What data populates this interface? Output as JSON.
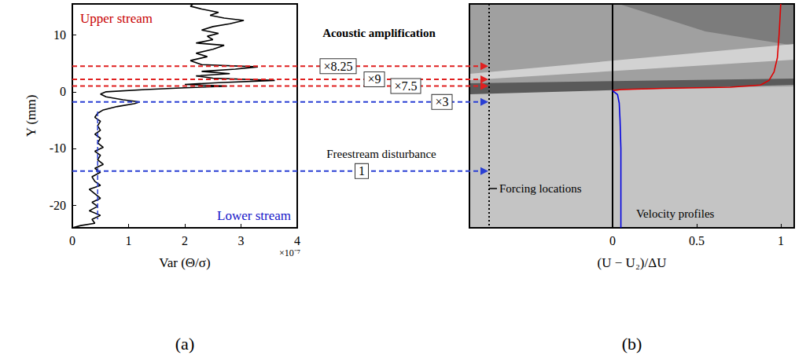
{
  "chart_data": [
    {
      "type": "line",
      "title": "(a)",
      "x_label": "Var (Θ/σ)",
      "x_scale_label": "×10⁻⁷",
      "y_label": "Y (mm)",
      "xlim": [
        0,
        4
      ],
      "xticks": [
        0,
        1,
        2,
        3,
        4
      ],
      "ylim": [
        -24,
        15.5
      ],
      "yticks": [
        -20,
        -10,
        0,
        10
      ],
      "grid": false,
      "series": [
        {
          "color": "#000000",
          "line_style": "solid",
          "marker": "none",
          "x": [
            0.0,
            0.15,
            0.4,
            0.35,
            0.5,
            0.3,
            0.45,
            0.35,
            0.5,
            0.4,
            0.3,
            0.5,
            0.4,
            0.35,
            0.5,
            0.4,
            0.55,
            0.45,
            0.5,
            0.4,
            0.55,
            0.45,
            0.5,
            0.4,
            0.5,
            0.45,
            0.5,
            0.4,
            0.45,
            0.55,
            0.8,
            1.1,
            1.2,
            0.9,
            0.6,
            0.5,
            0.6,
            1.3,
            2.0,
            2.75,
            2.0,
            2.6,
            3.6,
            2.5,
            2.2,
            2.8,
            2.3,
            2.9,
            3.3,
            2.3,
            2.1,
            2.4,
            2.2,
            2.5,
            2.7,
            2.2,
            2.5,
            2.4,
            2.6,
            2.3,
            2.5,
            2.8,
            3.05,
            2.7,
            2.45,
            2.6,
            2.3,
            2.1,
            2.15
          ],
          "y": [
            -24,
            -23.6,
            -23.2,
            -22.5,
            -21.8,
            -21,
            -20.2,
            -19.5,
            -18.8,
            -18,
            -17.2,
            -16.5,
            -15.8,
            -15,
            -14.2,
            -13.5,
            -12.8,
            -12,
            -11.2,
            -10.5,
            -9.8,
            -9,
            -8.2,
            -7.5,
            -6.8,
            -6,
            -5.2,
            -4.5,
            -3.8,
            -3.2,
            -2.6,
            -2.1,
            -1.8,
            -1.4,
            -0.9,
            -0.4,
            0,
            0.4,
            0.7,
            1.0,
            1.3,
            1.6,
            2.0,
            2.4,
            2.8,
            3.2,
            3.6,
            4.0,
            4.4,
            4.8,
            5.5,
            6.2,
            6.8,
            7.5,
            8.2,
            8.6,
            9.2,
            9.8,
            10.3,
            10.9,
            11.5,
            12.0,
            12.6,
            13.0,
            13.5,
            14.0,
            14.6,
            15.1,
            15.5
          ]
        },
        {
          "color": "#2a3fd4",
          "line_style": "dashed",
          "marker": "none",
          "x": [
            0.45,
            0.45
          ],
          "y": [
            -3.5,
            -22.5
          ]
        }
      ],
      "annotations": [
        {
          "text": "Upper stream",
          "color": "#c80000"
        },
        {
          "text": "Lower stream",
          "color": "#1414c8"
        }
      ]
    },
    {
      "type": "line",
      "title": "(b)",
      "x_label": "(U − U₂)/ΔU",
      "xlim": [
        -0.85,
        1.08
      ],
      "xticks": [
        0,
        0.5,
        1
      ],
      "ylim": [
        -24,
        15.5
      ],
      "grid": false,
      "tick_labels": "x",
      "series": [
        {
          "color": "#e00000",
          "line_style": "solid",
          "marker": "none",
          "x": [
            0,
            0.05,
            0.3,
            0.7,
            0.88,
            0.93,
            0.96,
            0.98,
            0.99,
            1.0
          ],
          "y": [
            0.2,
            0.4,
            0.6,
            0.8,
            1.2,
            2.0,
            3.5,
            6,
            10,
            15.5
          ]
        },
        {
          "color": "#0000e0",
          "line_style": "solid",
          "marker": "none",
          "x": [
            0,
            0.03,
            0.04,
            0.045,
            0.05,
            0.05
          ],
          "y": [
            0.2,
            -0.5,
            -2,
            -5,
            -10,
            -24
          ]
        }
      ],
      "annotations": [
        {
          "text": "Forcing locations",
          "color": "#000000"
        },
        {
          "text": "Velocity profiles",
          "color": "#000000"
        }
      ]
    }
  ],
  "forcing": {
    "title": "Acoustic amplification",
    "levels": [
      {
        "y": 4.5,
        "label": "×8.25",
        "color": "#e02020"
      },
      {
        "y": 2.2,
        "label": "×9",
        "color": "#e02020"
      },
      {
        "y": 1.0,
        "label": "×7.5",
        "color": "#e02020"
      },
      {
        "y": -1.8,
        "label": "×3",
        "color": "#2a3fd4"
      },
      {
        "y": -14,
        "label": "1",
        "color": "#2a3fd4",
        "title": "Freestream disturbance"
      }
    ]
  }
}
